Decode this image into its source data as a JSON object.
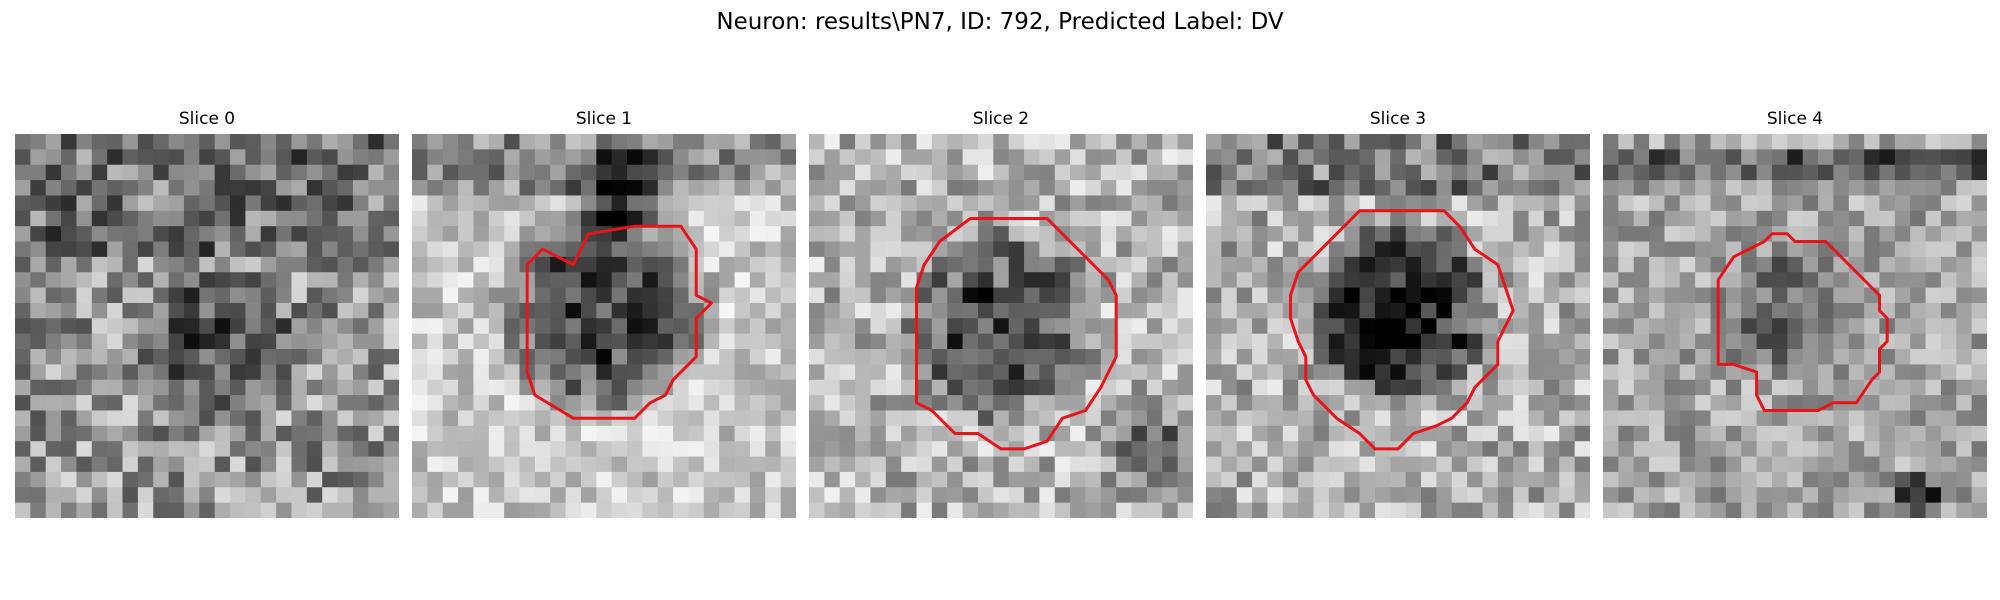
{
  "figure": {
    "title": "Neuron: results\\PN7, ID: 792, Predicted Label: DV"
  },
  "colors": {
    "contour": "#e8141a",
    "background": "#ffffff"
  },
  "panels": [
    {
      "title": "Slice 0",
      "has_contour": false
    },
    {
      "title": "Slice 1",
      "has_contour": true
    },
    {
      "title": "Slice 2",
      "has_contour": true
    },
    {
      "title": "Slice 3",
      "has_contour": true
    },
    {
      "title": "Slice 4",
      "has_contour": true
    }
  ]
}
